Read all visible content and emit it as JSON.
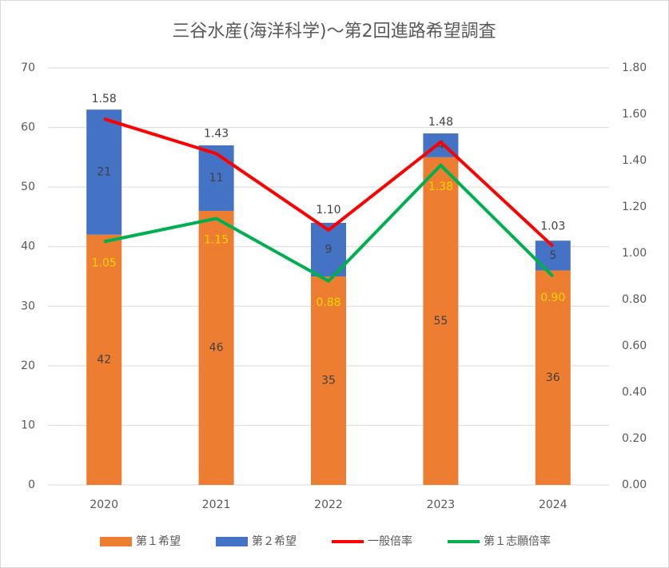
{
  "chart_data": {
    "type": "bar",
    "title": "三谷水産(海洋科学)～第2回進路希望調査",
    "categories": [
      "2020",
      "2021",
      "2022",
      "2023",
      "2024"
    ],
    "series": [
      {
        "name": "第１希望",
        "type": "bar",
        "color": "#ed7d31",
        "values": [
          42,
          46,
          35,
          55,
          36
        ]
      },
      {
        "name": "第２希望",
        "type": "bar",
        "color": "#4472c4",
        "values": [
          21,
          11,
          9,
          4,
          5
        ]
      },
      {
        "name": "一般倍率",
        "type": "line",
        "axis": "y2",
        "color": "#ff0000",
        "values": [
          1.58,
          1.43,
          1.1,
          1.48,
          1.03
        ],
        "value_labels": [
          "1.58",
          "1.43",
          "1.10",
          "1.48",
          "1.03"
        ]
      },
      {
        "name": "第１志願倍率",
        "type": "line",
        "axis": "y2",
        "color": "#00b050",
        "values": [
          1.05,
          1.15,
          0.88,
          1.38,
          0.9
        ],
        "value_labels": [
          "1.05",
          "1.15",
          "0.88",
          "1.38",
          "0.90"
        ]
      }
    ],
    "ylim": [
      0,
      70
    ],
    "yticks": [
      0,
      10,
      20,
      30,
      40,
      50,
      60,
      70
    ],
    "y2lim": [
      0,
      1.8
    ],
    "y2ticks": [
      {
        "value": 0,
        "label": "0.00"
      },
      {
        "value": 0.2,
        "label": "0.20"
      },
      {
        "value": 0.4,
        "label": "0.40"
      },
      {
        "value": 0.6,
        "label": "0.60"
      },
      {
        "value": 0.8,
        "label": "0.80"
      },
      {
        "value": 1,
        "label": "1.00"
      },
      {
        "value": 1.2,
        "label": "1.20"
      },
      {
        "value": 1.4,
        "label": "1.40"
      },
      {
        "value": 1.6,
        "label": "1.60"
      },
      {
        "value": 1.8,
        "label": "1.80"
      }
    ],
    "grid": true,
    "legend": "bottom"
  }
}
